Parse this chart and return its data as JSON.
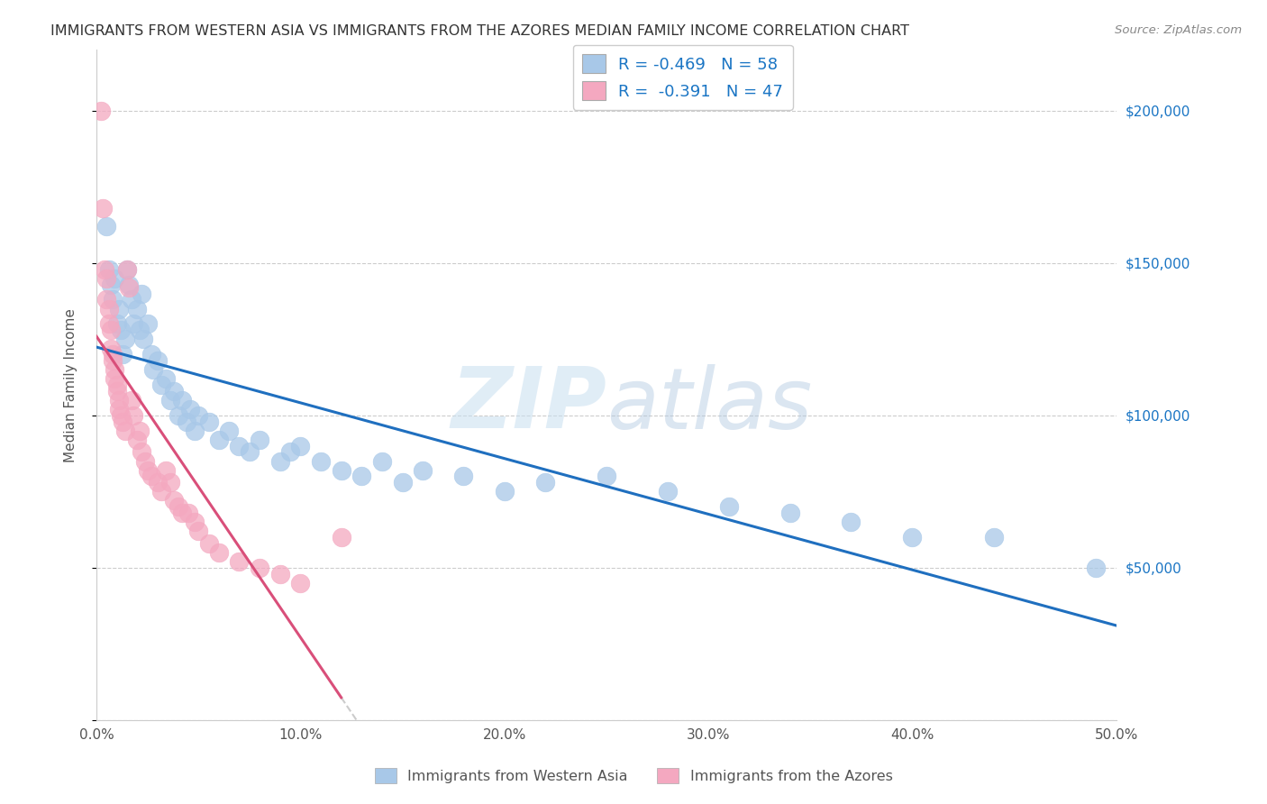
{
  "title": "IMMIGRANTS FROM WESTERN ASIA VS IMMIGRANTS FROM THE AZORES MEDIAN FAMILY INCOME CORRELATION CHART",
  "source": "Source: ZipAtlas.com",
  "ylabel": "Median Family Income",
  "xlim": [
    0.0,
    0.5
  ],
  "ylim": [
    0,
    220000
  ],
  "yticks": [
    0,
    50000,
    100000,
    150000,
    200000
  ],
  "xticks": [
    0.0,
    0.1,
    0.2,
    0.3,
    0.4,
    0.5
  ],
  "xtick_labels": [
    "0.0%",
    "10.0%",
    "20.0%",
    "30.0%",
    "40.0%",
    "50.0%"
  ],
  "blue_color": "#a8c8e8",
  "pink_color": "#f4a8c0",
  "blue_line_color": "#1f6fbf",
  "pink_line_color": "#d94f7a",
  "blue_R": -0.469,
  "blue_N": 58,
  "pink_R": -0.391,
  "pink_N": 47,
  "watermark_text": "ZIPatlas",
  "legend_blue_label": "Immigrants from Western Asia",
  "legend_pink_label": "Immigrants from the Azores",
  "blue_x": [
    0.005,
    0.006,
    0.007,
    0.008,
    0.009,
    0.01,
    0.011,
    0.012,
    0.013,
    0.014,
    0.015,
    0.016,
    0.017,
    0.018,
    0.02,
    0.021,
    0.022,
    0.023,
    0.025,
    0.027,
    0.028,
    0.03,
    0.032,
    0.034,
    0.036,
    0.038,
    0.04,
    0.042,
    0.044,
    0.046,
    0.048,
    0.05,
    0.055,
    0.06,
    0.065,
    0.07,
    0.075,
    0.08,
    0.09,
    0.095,
    0.1,
    0.11,
    0.12,
    0.13,
    0.14,
    0.15,
    0.16,
    0.18,
    0.2,
    0.22,
    0.25,
    0.28,
    0.31,
    0.34,
    0.37,
    0.4,
    0.44,
    0.49
  ],
  "blue_y": [
    162000,
    148000,
    143000,
    138000,
    145000,
    130000,
    135000,
    128000,
    120000,
    125000,
    148000,
    143000,
    138000,
    130000,
    135000,
    128000,
    140000,
    125000,
    130000,
    120000,
    115000,
    118000,
    110000,
    112000,
    105000,
    108000,
    100000,
    105000,
    98000,
    102000,
    95000,
    100000,
    98000,
    92000,
    95000,
    90000,
    88000,
    92000,
    85000,
    88000,
    90000,
    85000,
    82000,
    80000,
    85000,
    78000,
    82000,
    80000,
    75000,
    78000,
    80000,
    75000,
    70000,
    68000,
    65000,
    60000,
    60000,
    50000
  ],
  "pink_x": [
    0.002,
    0.003,
    0.004,
    0.005,
    0.005,
    0.006,
    0.006,
    0.007,
    0.007,
    0.008,
    0.008,
    0.009,
    0.009,
    0.01,
    0.01,
    0.011,
    0.011,
    0.012,
    0.013,
    0.014,
    0.015,
    0.016,
    0.017,
    0.018,
    0.02,
    0.021,
    0.022,
    0.024,
    0.025,
    0.027,
    0.03,
    0.032,
    0.034,
    0.036,
    0.038,
    0.04,
    0.042,
    0.045,
    0.048,
    0.05,
    0.055,
    0.06,
    0.07,
    0.08,
    0.09,
    0.1,
    0.12
  ],
  "pink_y": [
    200000,
    168000,
    148000,
    145000,
    138000,
    135000,
    130000,
    128000,
    122000,
    120000,
    118000,
    115000,
    112000,
    110000,
    108000,
    105000,
    102000,
    100000,
    98000,
    95000,
    148000,
    142000,
    105000,
    100000,
    92000,
    95000,
    88000,
    85000,
    82000,
    80000,
    78000,
    75000,
    82000,
    78000,
    72000,
    70000,
    68000,
    68000,
    65000,
    62000,
    58000,
    55000,
    52000,
    50000,
    48000,
    45000,
    60000
  ],
  "background_color": "#ffffff",
  "grid_color": "#cccccc",
  "title_color": "#333333",
  "axis_label_color": "#555555",
  "right_ytick_color": "#1a75c4"
}
